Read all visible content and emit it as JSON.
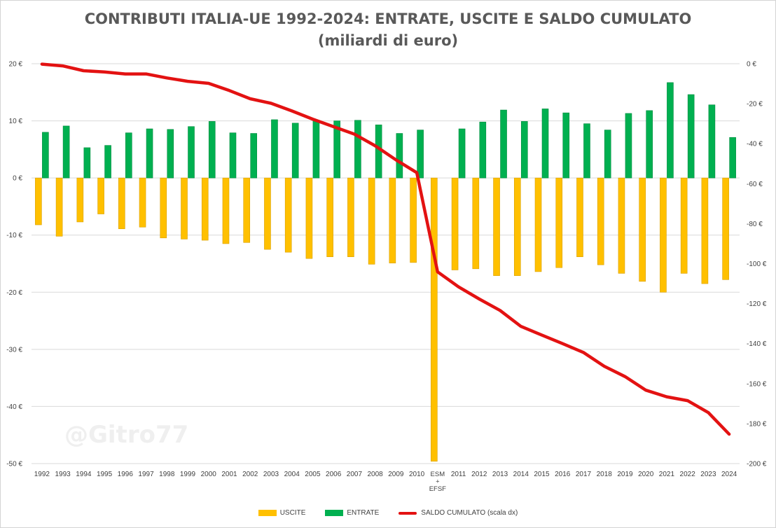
{
  "title_line1": "CONTRIBUTI ITALIA-UE 1992-2024: ENTRATE, USCITE E SALDO CUMULATO",
  "title_line2": "(miliardi di euro)",
  "watermark": "@Gitro77",
  "colors": {
    "uscite": "#ffc000",
    "entrate": "#00b050",
    "saldo": "#e31212",
    "grid": "#d9d9d9",
    "axis_text": "#404040"
  },
  "chart_data": {
    "type": "bar",
    "categories": [
      "1992",
      "1993",
      "1994",
      "1995",
      "1996",
      "1997",
      "1998",
      "1999",
      "2000",
      "2001",
      "2002",
      "2003",
      "2004",
      "2005",
      "2006",
      "2007",
      "2008",
      "2009",
      "2010",
      "ESM + EFSF",
      "2011",
      "2012",
      "2013",
      "2014",
      "2015",
      "2016",
      "2017",
      "2018",
      "2019",
      "2020",
      "2021",
      "2022",
      "2023",
      "2024"
    ],
    "series": [
      {
        "name": "USCITE",
        "kind": "bar",
        "axis": "left",
        "values": [
          -8.2,
          -10.2,
          -7.7,
          -6.3,
          -8.9,
          -8.6,
          -10.5,
          -10.7,
          -10.9,
          -11.5,
          -11.3,
          -12.5,
          -13.0,
          -14.1,
          -13.8,
          -13.8,
          -15.1,
          -14.9,
          -14.8,
          -49.6,
          -16.1,
          -15.9,
          -17.1,
          -17.1,
          -16.4,
          -15.7,
          -13.8,
          -15.2,
          -16.7,
          -18.1,
          -20.0,
          -16.7,
          -18.5,
          -17.8
        ]
      },
      {
        "name": "ENTRATE",
        "kind": "bar",
        "axis": "left",
        "values": [
          8.0,
          9.1,
          5.3,
          5.7,
          7.9,
          8.6,
          8.5,
          9.0,
          9.9,
          7.9,
          7.8,
          10.2,
          9.6,
          10.0,
          10.0,
          10.1,
          9.3,
          7.8,
          8.4,
          null,
          8.6,
          9.8,
          11.9,
          9.9,
          12.1,
          11.4,
          9.5,
          8.4,
          11.3,
          11.8,
          16.7,
          14.6,
          12.8,
          7.1
        ]
      },
      {
        "name": "SALDO CUMULATO (scala dx)",
        "kind": "line",
        "axis": "right",
        "values": [
          -0.2,
          -1.1,
          -3.5,
          -4.1,
          -5.1,
          -5.1,
          -7.1,
          -8.8,
          -9.8,
          -13.4,
          -17.5,
          -19.8,
          -23.6,
          -27.7,
          -31.5,
          -35.2,
          -41.0,
          -48.1,
          -54.5,
          -104.1,
          -111.6,
          -117.7,
          -123.4,
          -131.4,
          -135.7,
          -140.0,
          -144.4,
          -151.3,
          -156.5,
          -163.3,
          -166.6,
          -168.5,
          -174.5,
          -185.3
        ]
      }
    ],
    "left_axis": {
      "min": -50,
      "max": 20,
      "step": 10,
      "tick_labels": [
        "-50 €",
        "-40 €",
        "-30 €",
        "-20 €",
        "-10 €",
        "0 €",
        "10 €",
        "20 €"
      ]
    },
    "right_axis": {
      "min": -200,
      "max": 0,
      "step": 20,
      "tick_labels": [
        "-200 €",
        "-180 €",
        "-160 €",
        "-140 €",
        "-120 €",
        "-100 €",
        "-80 €",
        "-60 €",
        "-40 €",
        "-20 €",
        "0 €"
      ]
    },
    "legend": [
      "USCITE",
      "ENTRATE",
      "SALDO CUMULATO (scala dx)"
    ],
    "legend_position": "bottom"
  }
}
